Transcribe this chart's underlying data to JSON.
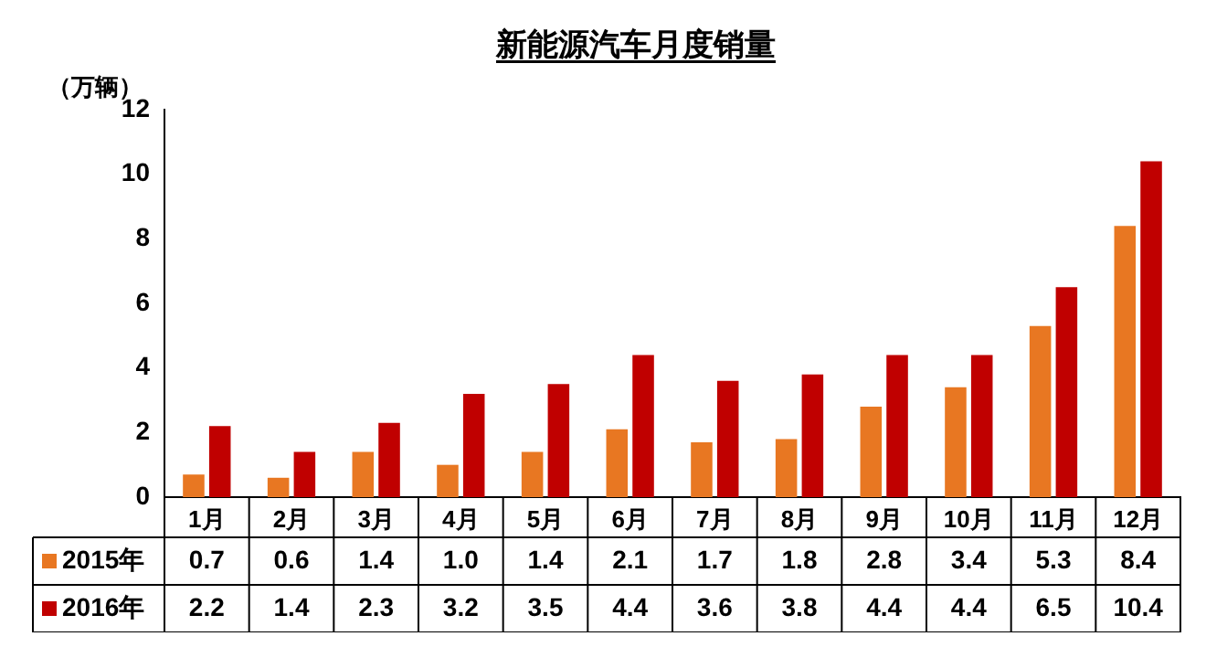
{
  "chart_data": {
    "type": "bar",
    "title": "新能源汽车月度销量",
    "ylabel": "（万辆）",
    "categories": [
      "1月",
      "2月",
      "3月",
      "4月",
      "5月",
      "6月",
      "7月",
      "8月",
      "9月",
      "10月",
      "11月",
      "12月"
    ],
    "series": [
      {
        "name": "2015年",
        "color": "#e87722",
        "values": [
          0.7,
          0.6,
          1.4,
          1.0,
          1.4,
          2.1,
          1.7,
          1.8,
          2.8,
          3.4,
          5.3,
          8.4
        ],
        "value_labels": [
          "0.7",
          "0.6",
          "1.4",
          "1.0",
          "1.4",
          "2.1",
          "1.7",
          "1.8",
          "2.8",
          "3.4",
          "5.3",
          "8.4"
        ]
      },
      {
        "name": "2016年",
        "color": "#c00000",
        "values": [
          2.2,
          1.4,
          2.3,
          3.2,
          3.5,
          4.4,
          3.6,
          3.8,
          4.4,
          4.4,
          6.5,
          10.4
        ],
        "value_labels": [
          "2.2",
          "1.4",
          "2.3",
          "3.2",
          "3.5",
          "4.4",
          "3.6",
          "3.8",
          "4.4",
          "4.4",
          "6.5",
          "10.4"
        ]
      }
    ],
    "ylim": [
      0,
      12
    ],
    "yticks": [
      0,
      2,
      4,
      6,
      8,
      10,
      12
    ],
    "grid": false,
    "legend": "bottom left"
  }
}
